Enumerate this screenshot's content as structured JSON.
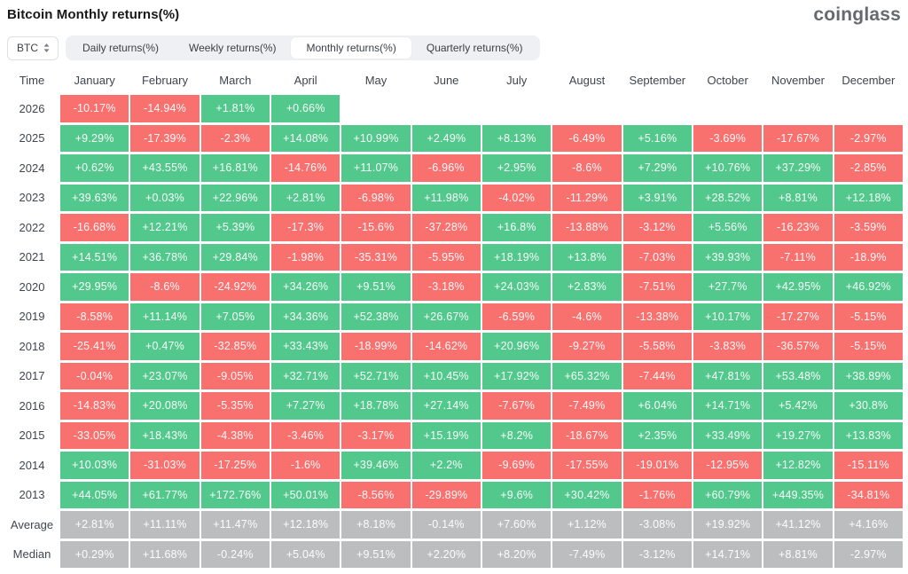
{
  "header": {
    "title": "Bitcoin Monthly returns(%)",
    "logo": "coinglass"
  },
  "controls": {
    "coin_selector": {
      "label": "BTC",
      "icon": "up-down-arrows-icon"
    },
    "tabs": [
      {
        "label": "Daily returns(%)",
        "active": false
      },
      {
        "label": "Weekly returns(%)",
        "active": false
      },
      {
        "label": "Monthly returns(%)",
        "active": true
      },
      {
        "label": "Quarterly returns(%)",
        "active": false
      }
    ]
  },
  "chart_data": {
    "type": "heatmap",
    "title": "Bitcoin Monthly returns(%)",
    "legend_position": "none",
    "grid": false,
    "colors": {
      "positive": "#52c88c",
      "negative": "#f8716f",
      "neutral": "#bcbdbe"
    },
    "columns": [
      "Time",
      "January",
      "February",
      "March",
      "April",
      "May",
      "June",
      "July",
      "August",
      "September",
      "October",
      "November",
      "December"
    ],
    "rows": [
      {
        "label": "2026",
        "style": "sign",
        "values": [
          "-10.17%",
          "-14.94%",
          "+1.81%",
          "+0.66%",
          "",
          "",
          "",
          "",
          "",
          "",
          "",
          ""
        ]
      },
      {
        "label": "2025",
        "style": "sign",
        "values": [
          "+9.29%",
          "-17.39%",
          "-2.3%",
          "+14.08%",
          "+10.99%",
          "+2.49%",
          "+8.13%",
          "-6.49%",
          "+5.16%",
          "-3.69%",
          "-17.67%",
          "-2.97%"
        ]
      },
      {
        "label": "2024",
        "style": "sign",
        "values": [
          "+0.62%",
          "+43.55%",
          "+16.81%",
          "-14.76%",
          "+11.07%",
          "-6.96%",
          "+2.95%",
          "-8.6%",
          "+7.29%",
          "+10.76%",
          "+37.29%",
          "-2.85%"
        ]
      },
      {
        "label": "2023",
        "style": "sign",
        "values": [
          "+39.63%",
          "+0.03%",
          "+22.96%",
          "+2.81%",
          "-6.98%",
          "+11.98%",
          "-4.02%",
          "-11.29%",
          "+3.91%",
          "+28.52%",
          "+8.81%",
          "+12.18%"
        ]
      },
      {
        "label": "2022",
        "style": "sign",
        "values": [
          "-16.68%",
          "+12.21%",
          "+5.39%",
          "-17.3%",
          "-15.6%",
          "-37.28%",
          "+16.8%",
          "-13.88%",
          "-3.12%",
          "+5.56%",
          "-16.23%",
          "-3.59%"
        ]
      },
      {
        "label": "2021",
        "style": "sign",
        "values": [
          "+14.51%",
          "+36.78%",
          "+29.84%",
          "-1.98%",
          "-35.31%",
          "-5.95%",
          "+18.19%",
          "+13.8%",
          "-7.03%",
          "+39.93%",
          "-7.11%",
          "-18.9%"
        ]
      },
      {
        "label": "2020",
        "style": "sign",
        "values": [
          "+29.95%",
          "-8.6%",
          "-24.92%",
          "+34.26%",
          "+9.51%",
          "-3.18%",
          "+24.03%",
          "+2.83%",
          "-7.51%",
          "+27.7%",
          "+42.95%",
          "+46.92%"
        ]
      },
      {
        "label": "2019",
        "style": "sign",
        "values": [
          "-8.58%",
          "+11.14%",
          "+7.05%",
          "+34.36%",
          "+52.38%",
          "+26.67%",
          "-6.59%",
          "-4.6%",
          "-13.38%",
          "+10.17%",
          "-17.27%",
          "-5.15%"
        ]
      },
      {
        "label": "2018",
        "style": "sign",
        "values": [
          "-25.41%",
          "+0.47%",
          "-32.85%",
          "+33.43%",
          "-18.99%",
          "-14.62%",
          "+20.96%",
          "-9.27%",
          "-5.58%",
          "-3.83%",
          "-36.57%",
          "-5.15%"
        ]
      },
      {
        "label": "2017",
        "style": "sign",
        "values": [
          "-0.04%",
          "+23.07%",
          "-9.05%",
          "+32.71%",
          "+52.71%",
          "+10.45%",
          "+17.92%",
          "+65.32%",
          "-7.44%",
          "+47.81%",
          "+53.48%",
          "+38.89%"
        ]
      },
      {
        "label": "2016",
        "style": "sign",
        "values": [
          "-14.83%",
          "+20.08%",
          "-5.35%",
          "+7.27%",
          "+18.78%",
          "+27.14%",
          "-7.67%",
          "-7.49%",
          "+6.04%",
          "+14.71%",
          "+5.42%",
          "+30.8%"
        ]
      },
      {
        "label": "2015",
        "style": "sign",
        "values": [
          "-33.05%",
          "+18.43%",
          "-4.38%",
          "-3.46%",
          "-3.17%",
          "+15.19%",
          "+8.2%",
          "-18.67%",
          "+2.35%",
          "+33.49%",
          "+19.27%",
          "+13.83%"
        ]
      },
      {
        "label": "2014",
        "style": "sign",
        "values": [
          "+10.03%",
          "-31.03%",
          "-17.25%",
          "-1.6%",
          "+39.46%",
          "+2.2%",
          "-9.69%",
          "-17.55%",
          "-19.01%",
          "-12.95%",
          "+12.82%",
          "-15.11%"
        ]
      },
      {
        "label": "2013",
        "style": "sign",
        "values": [
          "+44.05%",
          "+61.77%",
          "+172.76%",
          "+50.01%",
          "-8.56%",
          "-29.89%",
          "+9.6%",
          "+30.42%",
          "-1.76%",
          "+60.79%",
          "+449.35%",
          "-34.81%"
        ]
      },
      {
        "label": "Average",
        "style": "gray",
        "values": [
          "+2.81%",
          "+11.11%",
          "+11.47%",
          "+12.18%",
          "+8.18%",
          "-0.14%",
          "+7.60%",
          "+1.12%",
          "-3.08%",
          "+19.92%",
          "+41.12%",
          "+4.16%"
        ]
      },
      {
        "label": "Median",
        "style": "gray",
        "values": [
          "+0.29%",
          "+11.68%",
          "-0.24%",
          "+5.04%",
          "+9.51%",
          "+2.20%",
          "+8.20%",
          "-7.49%",
          "-3.12%",
          "+14.71%",
          "+8.81%",
          "-2.97%"
        ]
      }
    ]
  }
}
